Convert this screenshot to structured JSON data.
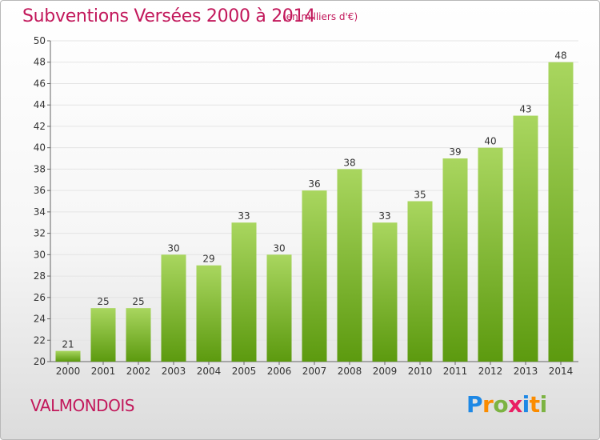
{
  "header": {
    "title": "Subventions Versées 2000 à 2014",
    "unit": "(en milliers d'€)"
  },
  "footer": {
    "commune": "VALMONDOIS",
    "logo": [
      "P",
      "r",
      "o",
      "x",
      "i",
      "t",
      "i"
    ]
  },
  "colors": {
    "title": "#c2185b",
    "bar_light": "#a9d65f",
    "bar_dark": "#5c9a0f",
    "grid": "#e4e4e4"
  },
  "chart_data": {
    "type": "bar",
    "title": "Subventions Versées 2000 à 2014",
    "subtitle": "(en milliers d'€)",
    "categories": [
      "2000",
      "2001",
      "2002",
      "2003",
      "2004",
      "2005",
      "2006",
      "2007",
      "2008",
      "2009",
      "2010",
      "2011",
      "2012",
      "2013",
      "2014"
    ],
    "values": [
      21,
      25,
      25,
      30,
      29,
      33,
      30,
      36,
      38,
      33,
      35,
      39,
      40,
      43,
      48
    ],
    "ylim": [
      20,
      50
    ],
    "yticks": [
      20,
      22,
      24,
      26,
      28,
      30,
      32,
      34,
      36,
      38,
      40,
      42,
      44,
      46,
      48,
      50
    ],
    "grid": true
  }
}
